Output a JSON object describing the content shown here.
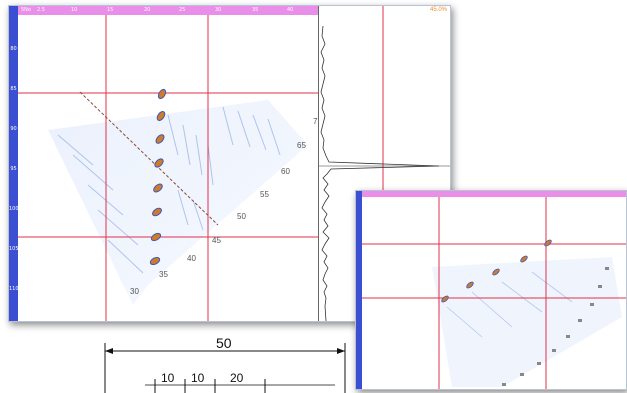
{
  "main_window": {
    "top_ruler_ticks": [
      "5No",
      "2.5",
      "10",
      "15",
      "20",
      "25",
      "30",
      "35",
      "40"
    ],
    "left_ruler_ticks": [
      "80",
      "85",
      "90",
      "95",
      "100",
      "105",
      "110"
    ],
    "angle_labels": [
      "30",
      "35",
      "40",
      "45",
      "50",
      "55",
      "60",
      "65",
      "7"
    ],
    "amp_readout": "45.0%"
  },
  "inset_window": {
    "top_ruler_ticks": [
      "",
      "",
      "",
      ""
    ]
  },
  "dimension_drawing": {
    "total": "50",
    "segments": [
      "10",
      "10",
      "20"
    ]
  },
  "colors": {
    "ruler_top": "#e98ee9",
    "ruler_left": "#3a4fd1",
    "cursor_line": "#e0304a",
    "scan_signal": "#6f8fd8",
    "indication": "#d27a2a"
  }
}
